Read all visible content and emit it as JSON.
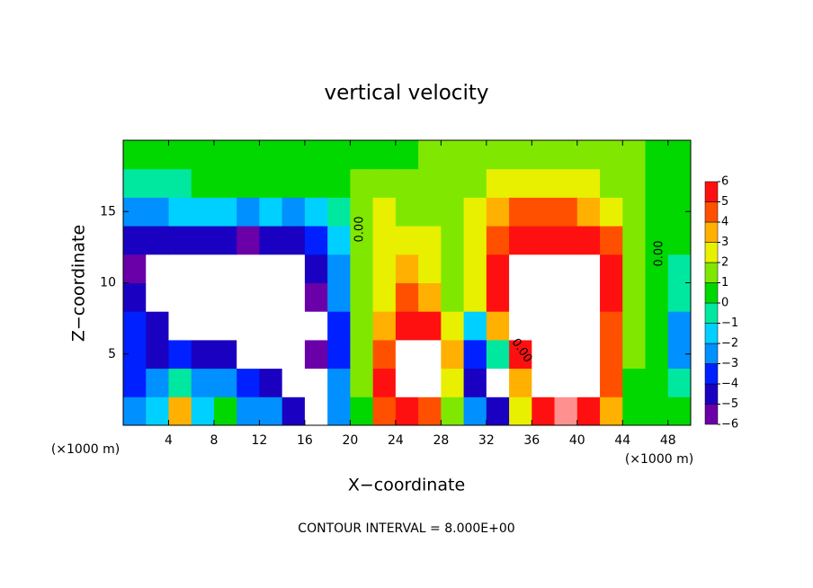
{
  "chart_data": {
    "type": "contour",
    "title": "vertical velocity",
    "xlabel": "X−coordinate",
    "ylabel": "Z−coordinate",
    "x_unit": "(×1000 m)",
    "footer": "CONTOUR INTERVAL = 8.000E+00",
    "contour_labels": [
      "0.00",
      "0.00",
      "0.00"
    ],
    "xlim": [
      0,
      50
    ],
    "ylim": [
      0,
      20
    ],
    "xticks": [
      4,
      8,
      12,
      16,
      20,
      24,
      28,
      32,
      36,
      40,
      44,
      48
    ],
    "yticks": [
      5,
      10,
      15
    ],
    "x": [
      1,
      3,
      5,
      7,
      9,
      11,
      13,
      15,
      17,
      19,
      21,
      23,
      25,
      27,
      29,
      31,
      33,
      35,
      37,
      39,
      41,
      43,
      45,
      47,
      49
    ],
    "z_levels": [
      1,
      3,
      5,
      7,
      9,
      11,
      13,
      15,
      17,
      19
    ],
    "values": [
      [
        -3,
        -2,
        3,
        -2,
        0,
        -3,
        -3,
        -5,
        -8,
        -3,
        0,
        4,
        5,
        4,
        1,
        -3,
        -5,
        2,
        5,
        6,
        5,
        3,
        0,
        0,
        0
      ],
      [
        -4,
        -3,
        -1,
        -3,
        -3,
        -4,
        -5,
        -8,
        -7,
        -3,
        1,
        5,
        8,
        8,
        2,
        -5,
        -8,
        3,
        8,
        8,
        8,
        4,
        0,
        0,
        -1
      ],
      [
        -4,
        -5,
        -4,
        -5,
        -5,
        -7,
        -8,
        -8,
        -6,
        -4,
        1,
        4,
        7,
        8,
        3,
        -4,
        -1,
        5,
        8,
        8,
        8,
        4,
        1,
        0,
        -3
      ],
      [
        -4,
        -5,
        -8,
        -8,
        -8,
        -8,
        -7,
        -8,
        -7,
        -4,
        1,
        3,
        5,
        5,
        2,
        -2,
        3,
        8,
        8,
        8,
        8,
        4,
        1,
        0,
        -3
      ],
      [
        -5,
        -8,
        -8,
        -8,
        -8,
        -8,
        -8,
        -8,
        -6,
        -3,
        1,
        2,
        4,
        3,
        1,
        2,
        5,
        8,
        8,
        8,
        8,
        5,
        1,
        0,
        -1
      ],
      [
        -6,
        -8,
        -8,
        -8,
        -7,
        -8,
        -7,
        -7,
        -5,
        -3,
        1,
        2,
        3,
        2,
        1,
        2,
        5,
        8,
        8,
        8,
        8,
        5,
        1,
        0,
        -1
      ],
      [
        -5,
        -5,
        -5,
        -5,
        -5,
        -6,
        -5,
        -5,
        -4,
        -2,
        1,
        2,
        2,
        2,
        1,
        2,
        4,
        5,
        5,
        5,
        5,
        4,
        1,
        0,
        0
      ],
      [
        -3,
        -3,
        -2,
        -2,
        -2,
        -3,
        -2,
        -3,
        -2,
        -1,
        1,
        2,
        1,
        1,
        1,
        2,
        3,
        4,
        4,
        4,
        3,
        2,
        1,
        0,
        0
      ],
      [
        -1,
        -1,
        -1,
        0,
        0,
        0,
        0,
        0,
        0,
        0,
        1,
        1,
        1,
        1,
        1,
        1,
        2,
        2,
        2,
        2,
        2,
        1,
        1,
        0,
        0
      ],
      [
        0,
        0,
        0,
        0,
        0,
        0,
        0,
        0,
        0,
        0,
        0,
        0,
        0,
        1,
        1,
        1,
        1,
        1,
        1,
        1,
        1,
        1,
        1,
        0,
        0
      ]
    ],
    "colorbar_ticks": [
      {
        "value": -6,
        "label": "−6"
      },
      {
        "value": -5,
        "label": "−5"
      },
      {
        "value": -4,
        "label": "−4"
      },
      {
        "value": -3,
        "label": "−3"
      },
      {
        "value": -2,
        "label": "−2"
      },
      {
        "value": -1,
        "label": "−1"
      },
      0,
      1,
      2,
      3,
      4,
      5,
      6
    ],
    "colors": [
      "#6a00a8",
      "#1a00c0",
      "#0020ff",
      "#0090ff",
      "#00d0ff",
      "#00e8a0",
      "#00d800",
      "#80e800",
      "#e8f000",
      "#ffb000",
      "#ff5000",
      "#ff1010",
      "#ff9090"
    ],
    "out_of_range_color": "#ffffff"
  }
}
